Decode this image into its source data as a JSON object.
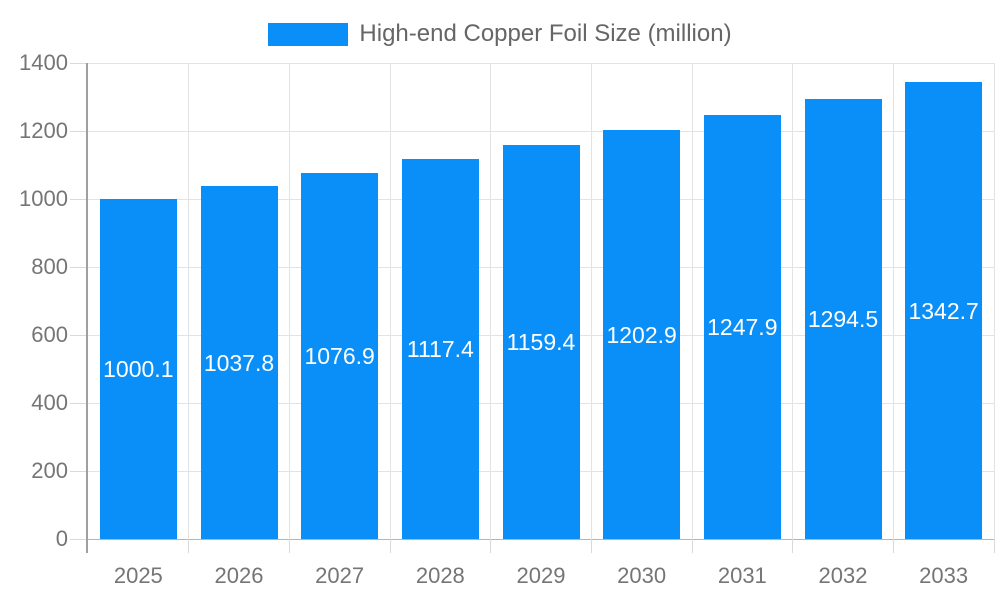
{
  "legend": {
    "label": "High-end Copper Foil Size (million)"
  },
  "chart_data": {
    "type": "bar",
    "title": "High-end Copper Foil Size (million)",
    "series_name": "High-end Copper Foil Size (million)",
    "categories": [
      "2025",
      "2026",
      "2027",
      "2028",
      "2029",
      "2030",
      "2031",
      "2032",
      "2033"
    ],
    "values": [
      1000.1,
      1037.8,
      1076.9,
      1117.4,
      1159.4,
      1202.9,
      1247.9,
      1294.5,
      1342.7
    ],
    "bar_labels": [
      "1000.1",
      "1037.8",
      "1076.9",
      "1117.4",
      "1159.4",
      "1202.9",
      "1247.9",
      "1294.5",
      "1342.7"
    ],
    "xlabel": "",
    "ylabel": "",
    "ylim": [
      0,
      1400
    ],
    "ytick_interval": 200,
    "ytick_labels": [
      "0",
      "200",
      "400",
      "600",
      "800",
      "1000",
      "1200",
      "1400"
    ],
    "grid": true,
    "legend_position": "top"
  },
  "colors": {
    "bar": "#0A8FF8",
    "bar_label_text": "#FFFFFF",
    "gridline": "#E3E3E3",
    "baseline": "#B5B5B5",
    "axis_line": "#A0A0A0",
    "tick_mark": "#D9D9D9",
    "tick_text": "#757575",
    "legend_text": "#666666",
    "background": "#FFFFFF"
  }
}
